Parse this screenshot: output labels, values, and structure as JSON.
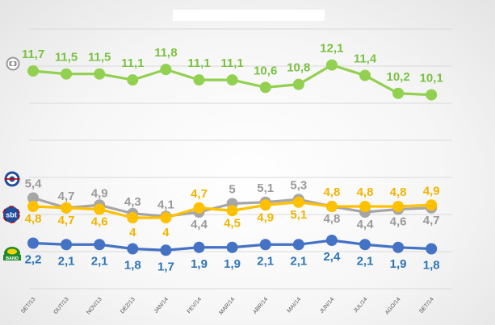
{
  "chart_data": {
    "type": "line",
    "title": "",
    "xlabel": "",
    "ylabel": "",
    "categories": [
      "SET/13",
      "OUT/13",
      "NOV/13",
      "DEZ/13",
      "JAN/14",
      "FEV/14",
      "MAR/14",
      "ABR/14",
      "MAI/14",
      "JUN/14",
      "JUL/14",
      "AGO/14",
      "SET/14"
    ],
    "grid": true,
    "legend": "logos at left",
    "series": [
      {
        "logo": "globo-logo-icon",
        "color": "#92d050",
        "label_color": "#7ac142",
        "values": [
          11.7,
          11.5,
          11.5,
          11.1,
          11.8,
          11.1,
          11.1,
          10.6,
          10.8,
          12.1,
          11.4,
          10.2,
          10.1
        ],
        "labels": [
          "11,7",
          "11,5",
          "11,5",
          "11,1",
          "11,8",
          "11,1",
          "11,1",
          "10,6",
          "10,8",
          "12,1",
          "11,4",
          "10,2",
          "10,1"
        ]
      },
      {
        "logo": "record-logo-icon",
        "color": "#a6a6a6",
        "label_color": "#9a9a9a",
        "values": [
          5.4,
          4.7,
          4.9,
          4.3,
          4.1,
          4.4,
          5.0,
          5.1,
          5.3,
          4.8,
          4.4,
          4.6,
          4.7
        ],
        "labels": [
          "5,4",
          "4,7",
          "4,9",
          "4,3",
          "4,1",
          "4,4",
          "5",
          "5,1",
          "5,3",
          "4,8",
          "4,4",
          "4,6",
          "4,7"
        ]
      },
      {
        "logo": "sbt-logo-icon",
        "logo_text": "sbt",
        "color": "#ffc000",
        "label_color": "#f2b400",
        "values": [
          4.8,
          4.7,
          4.6,
          4.0,
          4.0,
          4.7,
          4.5,
          4.9,
          5.1,
          4.8,
          4.8,
          4.8,
          4.9
        ],
        "labels": [
          "4,8",
          "4,7",
          "4,6",
          "4",
          "4",
          "4,7",
          "4,5",
          "4,9",
          "5,1",
          "4,8",
          "4,8",
          "4,8",
          "4,9"
        ]
      },
      {
        "logo": "band-logo-icon",
        "logo_text": "BAND",
        "color": "#4472c4",
        "label_color": "#2e75b6",
        "values": [
          2.2,
          2.1,
          2.1,
          1.8,
          1.7,
          1.9,
          1.9,
          2.1,
          2.1,
          2.4,
          2.1,
          1.9,
          1.8
        ],
        "labels": [
          "2,2",
          "2,1",
          "2,1",
          "1,8",
          "1,7",
          "1,9",
          "1,9",
          "2,1",
          "2,1",
          "2,4",
          "2,1",
          "1,9",
          "1,8"
        ]
      }
    ]
  }
}
